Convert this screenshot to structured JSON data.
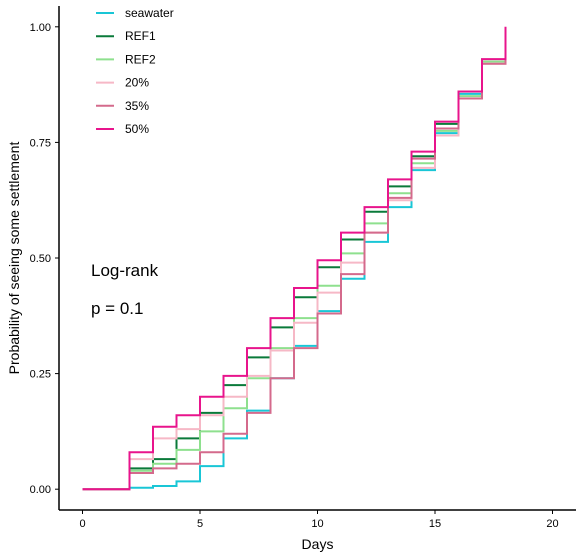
{
  "chart_data": {
    "type": "line",
    "step": true,
    "xlabel": "Days",
    "ylabel": "Probability of seeing some settlement",
    "xlim": [
      -1,
      21
    ],
    "ylim": [
      -0.045,
      1.045
    ],
    "x_ticks": [
      0,
      5,
      10,
      15,
      20
    ],
    "y_ticks": [
      0,
      0.25,
      0.5,
      0.75,
      1.0
    ],
    "y_tick_labels": [
      "0.00",
      "0.25",
      "0.50",
      "0.75",
      "1.00"
    ],
    "grid": false,
    "legend_position": "top-left",
    "annotations": [
      "Log-rank",
      "p = 0.1"
    ],
    "series": [
      {
        "name": "seawater",
        "color": "#19c6d6",
        "x": [
          0,
          2,
          3,
          4,
          5,
          6,
          7,
          8,
          9,
          10,
          11,
          12,
          13,
          14,
          15,
          16,
          17,
          18
        ],
        "y": [
          0,
          0.003,
          0.007,
          0.017,
          0.05,
          0.11,
          0.17,
          0.24,
          0.31,
          0.385,
          0.455,
          0.535,
          0.61,
          0.69,
          0.77,
          0.855,
          0.925,
          0.93
        ]
      },
      {
        "name": "REF1",
        "color": "#0a7a3a",
        "x": [
          0,
          2,
          3,
          4,
          5,
          6,
          7,
          8,
          9,
          10,
          11,
          12,
          13,
          14,
          15,
          16,
          17,
          18
        ],
        "y": [
          0,
          0.045,
          0.065,
          0.11,
          0.165,
          0.225,
          0.285,
          0.35,
          0.415,
          0.48,
          0.54,
          0.6,
          0.655,
          0.72,
          0.79,
          0.86,
          0.925,
          0.93
        ]
      },
      {
        "name": "REF2",
        "color": "#8ee08e",
        "x": [
          0,
          2,
          3,
          4,
          5,
          6,
          7,
          8,
          9,
          10,
          11,
          12,
          13,
          14,
          15,
          16,
          17,
          18
        ],
        "y": [
          0,
          0.04,
          0.055,
          0.085,
          0.125,
          0.175,
          0.24,
          0.305,
          0.37,
          0.44,
          0.51,
          0.575,
          0.64,
          0.705,
          0.775,
          0.85,
          0.925,
          0.93
        ]
      },
      {
        "name": "20%",
        "color": "#f6b8c6",
        "x": [
          0,
          2,
          3,
          4,
          5,
          6,
          7,
          8,
          9,
          10,
          11,
          12,
          13,
          14,
          15,
          16,
          17,
          18
        ],
        "y": [
          0,
          0.065,
          0.11,
          0.13,
          0.16,
          0.2,
          0.245,
          0.3,
          0.36,
          0.425,
          0.49,
          0.555,
          0.625,
          0.695,
          0.765,
          0.845,
          0.92,
          0.93
        ]
      },
      {
        "name": "35%",
        "color": "#d46a8c",
        "x": [
          0,
          2,
          3,
          4,
          5,
          6,
          7,
          8,
          9,
          10,
          11,
          12,
          13,
          14,
          15,
          16,
          17,
          18
        ],
        "y": [
          0,
          0.035,
          0.045,
          0.055,
          0.08,
          0.12,
          0.165,
          0.24,
          0.305,
          0.38,
          0.465,
          0.555,
          0.63,
          0.715,
          0.78,
          0.845,
          0.92,
          0.93
        ]
      },
      {
        "name": "50%",
        "color": "#e8148c",
        "x": [
          0,
          2,
          3,
          4,
          5,
          6,
          7,
          8,
          9,
          10,
          11,
          12,
          13,
          14,
          15,
          16,
          17,
          18
        ],
        "y": [
          0,
          0.08,
          0.135,
          0.16,
          0.2,
          0.245,
          0.305,
          0.37,
          0.435,
          0.495,
          0.555,
          0.61,
          0.67,
          0.73,
          0.795,
          0.86,
          0.93,
          1.0
        ]
      }
    ]
  }
}
